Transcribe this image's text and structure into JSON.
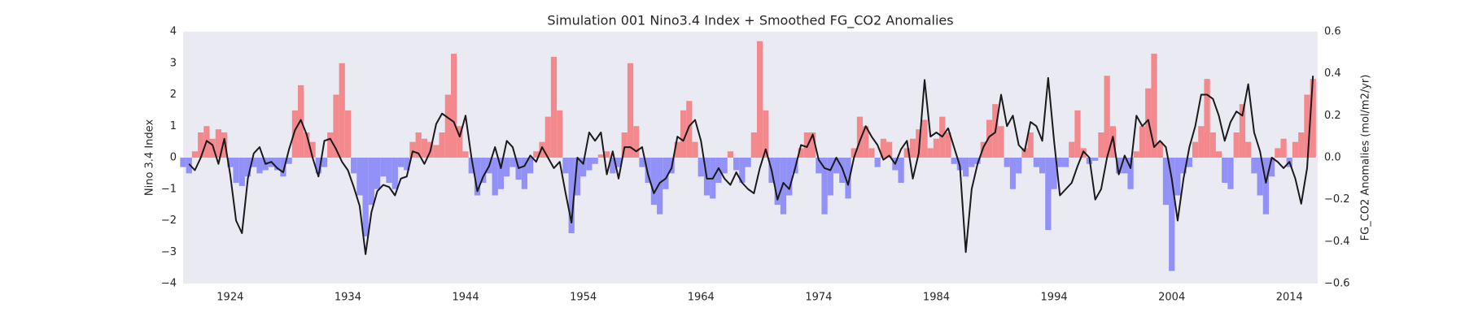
{
  "chart_data": {
    "type": "combo",
    "title": "Simulation 001 Nino3.4 Index + Smoothed FG_CO2 Anomalies",
    "ylabel": "Nino 3.4 Index",
    "y2label": "FG_CO2 Anomalies (mol/m2/yr)",
    "background": "#eaeaf2",
    "grid": false,
    "xlim": [
      1920,
      2016.4
    ],
    "xticks": [
      1924,
      1934,
      1944,
      1954,
      1964,
      1974,
      1984,
      1994,
      2004,
      2014
    ],
    "ylim": [
      -4,
      4
    ],
    "yticks": [
      {
        "value": -4,
        "label": "−4"
      },
      {
        "value": -3,
        "label": "−3"
      },
      {
        "value": -2,
        "label": "−2"
      },
      {
        "value": -1,
        "label": "−1"
      },
      0,
      1,
      2,
      3,
      4
    ],
    "y2lim": [
      -0.6,
      0.6
    ],
    "y2ticks": [
      {
        "value": -0.6,
        "label": "−0.6"
      },
      {
        "value": -0.4,
        "label": "−0.4"
      },
      {
        "value": -0.2,
        "label": "−0.2"
      },
      {
        "value": 0,
        "label": "0.0"
      },
      0.2,
      0.4,
      0.6
    ],
    "x": [
      1920,
      1920.5,
      1921,
      1921.5,
      1922,
      1922.5,
      1923,
      1923.5,
      1924,
      1924.5,
      1925,
      1925.5,
      1926,
      1926.5,
      1927,
      1927.5,
      1928,
      1928.5,
      1929,
      1929.5,
      1930,
      1930.5,
      1931,
      1931.5,
      1932,
      1932.5,
      1933,
      1933.5,
      1934,
      1934.5,
      1935,
      1935.5,
      1936,
      1936.5,
      1937,
      1937.5,
      1938,
      1938.5,
      1939,
      1939.5,
      1940,
      1940.5,
      1941,
      1941.5,
      1942,
      1942.5,
      1943,
      1943.5,
      1944,
      1944.5,
      1945,
      1945.5,
      1946,
      1946.5,
      1947,
      1947.5,
      1948,
      1948.5,
      1949,
      1949.5,
      1950,
      1950.5,
      1951,
      1951.5,
      1952,
      1952.5,
      1953,
      1953.5,
      1954,
      1954.5,
      1955,
      1955.5,
      1956,
      1956.5,
      1957,
      1957.5,
      1958,
      1958.5,
      1959,
      1959.5,
      1960,
      1960.5,
      1961,
      1961.5,
      1962,
      1962.5,
      1963,
      1963.5,
      1964,
      1964.5,
      1965,
      1965.5,
      1966,
      1966.5,
      1967,
      1967.5,
      1968,
      1968.5,
      1969,
      1969.5,
      1970,
      1970.5,
      1971,
      1971.5,
      1972,
      1972.5,
      1973,
      1973.5,
      1974,
      1974.5,
      1975,
      1975.5,
      1976,
      1976.5,
      1977,
      1977.5,
      1978,
      1978.5,
      1979,
      1979.5,
      1980,
      1980.5,
      1981,
      1981.5,
      1982,
      1982.5,
      1983,
      1983.5,
      1984,
      1984.5,
      1985,
      1985.5,
      1986,
      1986.5,
      1987,
      1987.5,
      1988,
      1988.5,
      1989,
      1989.5,
      1990,
      1990.5,
      1991,
      1991.5,
      1992,
      1992.5,
      1993,
      1993.5,
      1994,
      1994.5,
      1995,
      1995.5,
      1996,
      1996.5,
      1997,
      1997.5,
      1998,
      1998.5,
      1999,
      1999.5,
      2000,
      2000.5,
      2001,
      2001.5,
      2002,
      2002.5,
      2003,
      2003.5,
      2004,
      2004.5,
      2005,
      2005.5,
      2006,
      2006.5,
      2007,
      2007.5,
      2008,
      2008.5,
      2009,
      2009.5,
      2010,
      2010.5,
      2011,
      2011.5,
      2012,
      2012.5,
      2013,
      2013.5,
      2014,
      2014.5,
      2015,
      2015.5,
      2016
    ],
    "series": [
      {
        "type": "bar",
        "axis": "y",
        "positive_color": "#f4898d",
        "negative_color": "#9191f7",
        "width": 0.5,
        "values": [
          -0.3,
          -0.5,
          0.2,
          0.8,
          1.0,
          0.6,
          0.9,
          0.8,
          -0.3,
          -0.8,
          -0.9,
          -0.6,
          -0.3,
          -0.5,
          -0.4,
          -0.3,
          -0.4,
          -0.6,
          -0.2,
          1.5,
          2.3,
          0.8,
          0.5,
          -0.5,
          -0.3,
          0.8,
          2.0,
          3.0,
          1.5,
          -0.5,
          -1.2,
          -2.5,
          -1.5,
          -1.0,
          -0.6,
          -0.8,
          -1.0,
          -0.3,
          -0.4,
          0.5,
          0.8,
          0.6,
          0.5,
          0.4,
          0.8,
          2.0,
          3.3,
          1.0,
          0.2,
          -0.5,
          -1.2,
          -0.8,
          -0.5,
          -1.2,
          -1.0,
          -0.6,
          -0.3,
          -0.7,
          -1.0,
          -0.5,
          0.2,
          0.5,
          1.3,
          3.2,
          1.5,
          -0.5,
          -2.4,
          -1.2,
          -0.6,
          -0.4,
          -0.2,
          0.1,
          0.2,
          -0.5,
          -0.3,
          0.8,
          3.0,
          1.0,
          -0.3,
          -0.8,
          -1.5,
          -1.8,
          -1.0,
          -0.5,
          0.5,
          1.5,
          1.8,
          0.5,
          -0.6,
          -1.2,
          -1.3,
          -0.8,
          -0.5,
          0.2,
          -0.4,
          -0.8,
          -0.3,
          0.8,
          3.7,
          1.5,
          -0.8,
          -1.5,
          -1.8,
          -1.2,
          -0.5,
          0.3,
          0.8,
          0.8,
          -0.5,
          -1.8,
          -1.2,
          -0.5,
          -0.8,
          -1.3,
          0.3,
          1.3,
          1.0,
          0.3,
          -0.3,
          0.6,
          0.5,
          -0.4,
          -0.8,
          0.3,
          0.6,
          0.9,
          1.2,
          0.3,
          0.6,
          1.3,
          0.8,
          -0.2,
          -0.4,
          -0.6,
          -0.3,
          -0.2,
          0.5,
          1.2,
          1.7,
          1.0,
          -0.3,
          -1.0,
          -0.5,
          0.3,
          0.8,
          -0.3,
          -0.5,
          -2.3,
          -1.0,
          -0.3,
          -0.3,
          0.5,
          1.5,
          0.3,
          -0.2,
          -0.1,
          0.8,
          2.6,
          1.0,
          -0.5,
          -0.5,
          -1.0,
          0.2,
          1.0,
          2.2,
          3.3,
          0.5,
          -1.5,
          -3.6,
          -1.2,
          -0.5,
          -0.3,
          0.5,
          1.0,
          2.5,
          0.8,
          0.2,
          -0.8,
          -1.0,
          0.8,
          1.7,
          0.5,
          -0.5,
          -1.2,
          -1.8,
          -0.6,
          0.3,
          0.6,
          -0.3,
          0.5,
          0.8,
          2.0,
          2.5
        ]
      },
      {
        "type": "line",
        "axis": "y2",
        "color": "#1a1a1a",
        "values": [
          null,
          -0.03,
          -0.06,
          0.0,
          0.08,
          0.06,
          -0.03,
          0.09,
          -0.08,
          -0.3,
          -0.36,
          -0.1,
          0.02,
          0.05,
          -0.03,
          -0.02,
          -0.05,
          -0.07,
          0.04,
          0.13,
          0.18,
          0.11,
          0.0,
          -0.09,
          0.08,
          0.09,
          0.04,
          -0.02,
          -0.06,
          -0.14,
          -0.23,
          -0.46,
          -0.26,
          -0.16,
          -0.13,
          -0.14,
          -0.18,
          -0.1,
          -0.09,
          0.03,
          0.02,
          -0.03,
          0.03,
          0.16,
          0.21,
          0.19,
          0.17,
          0.1,
          0.2,
          0.0,
          -0.16,
          -0.09,
          -0.04,
          0.05,
          -0.05,
          0.08,
          0.05,
          -0.05,
          -0.04,
          0.01,
          -0.02,
          0.05,
          0.0,
          -0.05,
          -0.02,
          -0.17,
          -0.31,
          0.0,
          -0.03,
          0.12,
          0.08,
          0.12,
          -0.08,
          0.03,
          -0.1,
          0.05,
          0.05,
          0.03,
          0.05,
          -0.08,
          -0.17,
          -0.12,
          -0.1,
          -0.05,
          0.1,
          0.08,
          0.15,
          0.18,
          0.08,
          -0.1,
          -0.1,
          -0.05,
          -0.1,
          -0.13,
          -0.07,
          -0.12,
          -0.15,
          -0.17,
          -0.05,
          0.04,
          -0.06,
          -0.2,
          -0.12,
          -0.15,
          -0.05,
          0.06,
          0.05,
          0.11,
          -0.01,
          -0.05,
          -0.06,
          0.0,
          -0.05,
          -0.13,
          0.0,
          0.08,
          0.15,
          0.1,
          0.06,
          -0.01,
          0.01,
          -0.03,
          0.04,
          0.08,
          -0.1,
          0.02,
          0.37,
          0.1,
          0.12,
          0.1,
          0.14,
          0.05,
          -0.04,
          -0.45,
          -0.15,
          -0.03,
          0.05,
          0.1,
          0.12,
          0.3,
          0.15,
          0.2,
          0.06,
          0.03,
          0.17,
          0.15,
          0.08,
          0.38,
          0.08,
          -0.18,
          -0.15,
          -0.12,
          -0.04,
          0.03,
          0.0,
          -0.2,
          -0.15,
          0.0,
          0.1,
          -0.08,
          0.01,
          -0.05,
          0.2,
          0.15,
          0.18,
          0.05,
          0.08,
          0.05,
          -0.1,
          -0.3,
          -0.1,
          0.05,
          0.15,
          0.3,
          0.3,
          0.28,
          0.2,
          0.08,
          0.17,
          0.22,
          0.2,
          0.35,
          0.12,
          0.03,
          -0.12,
          0.0,
          -0.02,
          -0.05,
          -0.02,
          -0.1,
          -0.22,
          -0.05,
          0.39
        ]
      }
    ]
  }
}
